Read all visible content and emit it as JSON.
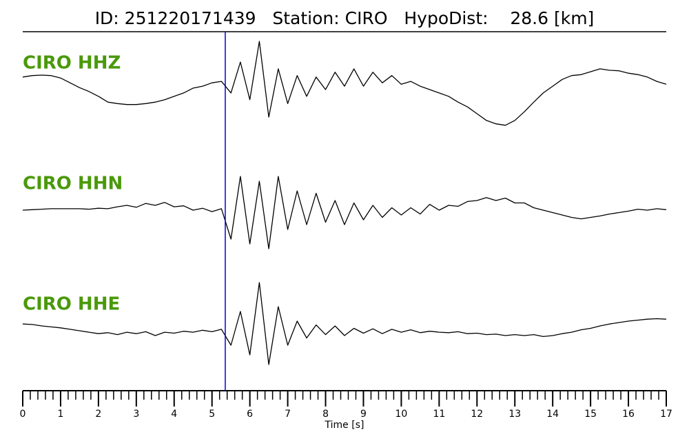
{
  "chart_data": {
    "type": "seismogram",
    "title": "ID: 251220171439   Station: CIRO   HypoDist:    28.6 [km]",
    "xlabel": "Time [s]",
    "x": [
      0,
      0.25,
      0.5,
      0.75,
      1,
      1.25,
      1.5,
      1.75,
      2,
      2.25,
      2.5,
      2.75,
      3,
      3.25,
      3.5,
      3.75,
      4,
      4.25,
      4.5,
      4.75,
      5,
      5.25,
      5.5,
      5.75,
      6,
      6.25,
      6.5,
      6.75,
      7,
      7.25,
      7.5,
      7.75,
      8,
      8.25,
      8.5,
      8.75,
      9,
      9.25,
      9.5,
      9.75,
      10,
      10.25,
      10.5,
      10.75,
      11,
      11.25,
      11.5,
      11.75,
      12,
      12.25,
      12.5,
      12.75,
      13,
      13.25,
      13.5,
      13.75,
      14,
      14.25,
      14.5,
      14.75,
      15,
      15.25,
      15.5,
      15.75,
      16,
      16.25,
      16.5,
      16.75,
      17
    ],
    "series": [
      {
        "name": "CIRO HHZ",
        "color": "#000000",
        "values": [
          0.26,
          0.29,
          0.3,
          0.29,
          0.24,
          0.14,
          0.04,
          -0.04,
          -0.14,
          -0.26,
          -0.29,
          -0.31,
          -0.31,
          -0.29,
          -0.26,
          -0.21,
          -0.14,
          -0.07,
          0.03,
          0.07,
          0.14,
          0.17,
          -0.07,
          0.57,
          -0.21,
          1.0,
          -0.57,
          0.43,
          -0.29,
          0.29,
          -0.14,
          0.26,
          0,
          0.36,
          0.07,
          0.43,
          0.07,
          0.36,
          0.14,
          0.29,
          0.11,
          0.17,
          0.07,
          0,
          -0.07,
          -0.14,
          -0.26,
          -0.36,
          -0.5,
          -0.64,
          -0.71,
          -0.74,
          -0.64,
          -0.46,
          -0.26,
          -0.07,
          0.07,
          0.21,
          0.29,
          0.31,
          0.37,
          0.43,
          0.4,
          0.39,
          0.34,
          0.31,
          0.26,
          0.17,
          0.11
        ]
      },
      {
        "name": "CIRO HHN",
        "color": "#000000",
        "values": [
          0,
          0.01,
          0.02,
          0.03,
          0.03,
          0.03,
          0.03,
          0.02,
          0.04,
          0.03,
          0.07,
          0.1,
          0.06,
          0.14,
          0.1,
          0.16,
          0.07,
          0.09,
          0,
          0.04,
          -0.03,
          0.03,
          -0.6,
          0.7,
          -0.7,
          0.6,
          -0.8,
          0.7,
          -0.4,
          0.4,
          -0.3,
          0.35,
          -0.25,
          0.2,
          -0.3,
          0.15,
          -0.2,
          0.1,
          -0.15,
          0.05,
          -0.1,
          0.05,
          -0.08,
          0.12,
          0,
          0.1,
          0.08,
          0.18,
          0.2,
          0.26,
          0.2,
          0.25,
          0.15,
          0.15,
          0.05,
          0,
          -0.05,
          -0.1,
          -0.15,
          -0.18,
          -0.15,
          -0.12,
          -0.08,
          -0.05,
          -0.02,
          0.02,
          0,
          0.03,
          0.01
        ]
      },
      {
        "name": "CIRO HHE",
        "color": "#000000",
        "values": [
          0.14,
          0.13,
          0.1,
          0.08,
          0.06,
          0.03,
          0,
          -0.03,
          -0.06,
          -0.04,
          -0.08,
          -0.03,
          -0.06,
          -0.02,
          -0.1,
          -0.03,
          -0.05,
          -0.01,
          -0.03,
          0.01,
          -0.02,
          0.03,
          -0.3,
          0.4,
          -0.5,
          1.0,
          -0.7,
          0.5,
          -0.3,
          0.2,
          -0.15,
          0.12,
          -0.08,
          0.1,
          -0.1,
          0.05,
          -0.05,
          0.04,
          -0.06,
          0.03,
          -0.03,
          0.02,
          -0.04,
          -0.01,
          -0.03,
          -0.04,
          -0.02,
          -0.06,
          -0.05,
          -0.08,
          -0.07,
          -0.1,
          -0.08,
          -0.1,
          -0.08,
          -0.12,
          -0.1,
          -0.06,
          -0.03,
          0.02,
          0.05,
          0.1,
          0.14,
          0.17,
          0.2,
          0.22,
          0.24,
          0.25,
          0.24
        ]
      }
    ],
    "label_color": "#4a990a",
    "pick": 5.35,
    "pick_color": "#0000cc",
    "xlim": [
      0,
      17
    ],
    "xticks": [
      0,
      1,
      2,
      3,
      4,
      5,
      6,
      7,
      8,
      9,
      10,
      11,
      12,
      13,
      14,
      15,
      16,
      17
    ],
    "ylim": [
      -1,
      1
    ],
    "xminor": 5
  }
}
